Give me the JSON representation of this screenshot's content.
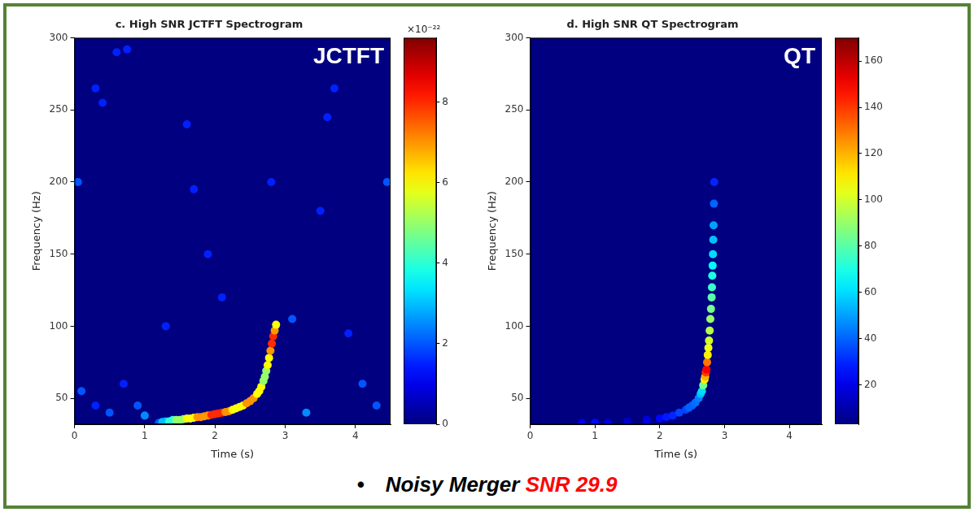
{
  "chart_data": [
    {
      "type": "heatmap",
      "title": "c. High SNR JCTFT Spectrogram",
      "annotation": "JCTFT",
      "x_label": "Time (s)",
      "y_label": "Frequency (Hz)",
      "xlim": [
        0,
        4.5
      ],
      "ylim": [
        32,
        300
      ],
      "xticks": [
        0,
        1,
        2,
        3,
        4
      ],
      "yticks": [
        50,
        100,
        150,
        200,
        250,
        300
      ],
      "grid": false,
      "colorbar": {
        "range": [
          0,
          9.6
        ],
        "ticks": [
          0,
          2,
          4,
          6,
          8
        ],
        "label": "×10⁻²²"
      },
      "cells": [
        {
          "x": 1.2,
          "y": 33,
          "value": 2
        },
        {
          "x": 1.25,
          "y": 33.5,
          "value": 3
        },
        {
          "x": 1.3,
          "y": 34,
          "value": 3
        },
        {
          "x": 1.35,
          "y": 34,
          "value": 4
        },
        {
          "x": 1.4,
          "y": 35,
          "value": 4
        },
        {
          "x": 1.45,
          "y": 35,
          "value": 5
        },
        {
          "x": 1.5,
          "y": 35,
          "value": 5
        },
        {
          "x": 1.55,
          "y": 35.5,
          "value": 5
        },
        {
          "x": 1.6,
          "y": 36,
          "value": 6
        },
        {
          "x": 1.65,
          "y": 36,
          "value": 6
        },
        {
          "x": 1.7,
          "y": 36.5,
          "value": 6
        },
        {
          "x": 1.75,
          "y": 37,
          "value": 7
        },
        {
          "x": 1.8,
          "y": 37,
          "value": 7
        },
        {
          "x": 1.85,
          "y": 37.5,
          "value": 7
        },
        {
          "x": 1.9,
          "y": 38,
          "value": 7
        },
        {
          "x": 1.95,
          "y": 38.5,
          "value": 8
        },
        {
          "x": 2.0,
          "y": 39,
          "value": 8
        },
        {
          "x": 2.05,
          "y": 39.5,
          "value": 8
        },
        {
          "x": 2.1,
          "y": 40,
          "value": 8
        },
        {
          "x": 2.15,
          "y": 40.5,
          "value": 7
        },
        {
          "x": 2.2,
          "y": 41,
          "value": 7
        },
        {
          "x": 2.25,
          "y": 42,
          "value": 6
        },
        {
          "x": 2.3,
          "y": 43,
          "value": 6
        },
        {
          "x": 2.35,
          "y": 44,
          "value": 6
        },
        {
          "x": 2.4,
          "y": 45,
          "value": 6
        },
        {
          "x": 2.45,
          "y": 46.5,
          "value": 7
        },
        {
          "x": 2.5,
          "y": 48,
          "value": 7
        },
        {
          "x": 2.55,
          "y": 50,
          "value": 7
        },
        {
          "x": 2.6,
          "y": 53,
          "value": 6
        },
        {
          "x": 2.63,
          "y": 55,
          "value": 6
        },
        {
          "x": 2.66,
          "y": 58,
          "value": 6
        },
        {
          "x": 2.69,
          "y": 62,
          "value": 5
        },
        {
          "x": 2.71,
          "y": 65,
          "value": 5
        },
        {
          "x": 2.73,
          "y": 69,
          "value": 5
        },
        {
          "x": 2.75,
          "y": 73,
          "value": 6
        },
        {
          "x": 2.77,
          "y": 78,
          "value": 6
        },
        {
          "x": 2.79,
          "y": 83,
          "value": 7
        },
        {
          "x": 2.81,
          "y": 88,
          "value": 8
        },
        {
          "x": 2.83,
          "y": 93,
          "value": 8
        },
        {
          "x": 2.85,
          "y": 97,
          "value": 7
        },
        {
          "x": 2.87,
          "y": 101,
          "value": 6
        },
        {
          "x": 0.1,
          "y": 55,
          "value": 2
        },
        {
          "x": 0.3,
          "y": 45,
          "value": 1.5
        },
        {
          "x": 0.5,
          "y": 40,
          "value": 2
        },
        {
          "x": 0.7,
          "y": 60,
          "value": 1.5
        },
        {
          "x": 0.9,
          "y": 45,
          "value": 2
        },
        {
          "x": 1.0,
          "y": 38,
          "value": 2.5
        },
        {
          "x": 0.3,
          "y": 265,
          "value": 1.5
        },
        {
          "x": 0.4,
          "y": 255,
          "value": 1.5
        },
        {
          "x": 0.6,
          "y": 290,
          "value": 1.5
        },
        {
          "x": 0.75,
          "y": 292,
          "value": 1.5
        },
        {
          "x": 1.3,
          "y": 100,
          "value": 1.5
        },
        {
          "x": 1.6,
          "y": 240,
          "value": 1.5
        },
        {
          "x": 1.7,
          "y": 195,
          "value": 1.5
        },
        {
          "x": 1.9,
          "y": 150,
          "value": 1.5
        },
        {
          "x": 2.1,
          "y": 120,
          "value": 1.5
        },
        {
          "x": 2.8,
          "y": 200,
          "value": 1.5
        },
        {
          "x": 3.1,
          "y": 105,
          "value": 2
        },
        {
          "x": 3.3,
          "y": 40,
          "value": 2.5
        },
        {
          "x": 3.5,
          "y": 180,
          "value": 1.5
        },
        {
          "x": 3.6,
          "y": 245,
          "value": 1.5
        },
        {
          "x": 3.7,
          "y": 265,
          "value": 1.5
        },
        {
          "x": 3.9,
          "y": 95,
          "value": 1.5
        },
        {
          "x": 4.1,
          "y": 60,
          "value": 2
        },
        {
          "x": 4.3,
          "y": 45,
          "value": 2
        },
        {
          "x": 4.45,
          "y": 200,
          "value": 2
        },
        {
          "x": 0.05,
          "y": 200,
          "value": 2
        }
      ]
    },
    {
      "type": "heatmap",
      "title": "d. High SNR QT Spectrogram",
      "annotation": "QT",
      "x_label": "Time (s)",
      "y_label": "Frequency (Hz)",
      "xlim": [
        0,
        4.5
      ],
      "ylim": [
        32,
        300
      ],
      "xticks": [
        0,
        1,
        2,
        3,
        4
      ],
      "yticks": [
        50,
        100,
        150,
        200,
        250,
        300
      ],
      "grid": false,
      "colorbar": {
        "range": [
          3,
          170
        ],
        "ticks": [
          20,
          40,
          60,
          80,
          100,
          120,
          140,
          160
        ]
      },
      "cells": [
        {
          "x": 0.8,
          "y": 33,
          "value": 20
        },
        {
          "x": 1.0,
          "y": 33,
          "value": 25
        },
        {
          "x": 1.2,
          "y": 33,
          "value": 18
        },
        {
          "x": 1.5,
          "y": 34,
          "value": 15
        },
        {
          "x": 1.8,
          "y": 35,
          "value": 20
        },
        {
          "x": 2.0,
          "y": 36,
          "value": 25
        },
        {
          "x": 2.1,
          "y": 37,
          "value": 28
        },
        {
          "x": 2.2,
          "y": 38,
          "value": 30
        },
        {
          "x": 2.3,
          "y": 40,
          "value": 35
        },
        {
          "x": 2.4,
          "y": 42,
          "value": 35
        },
        {
          "x": 2.45,
          "y": 43.5,
          "value": 40
        },
        {
          "x": 2.5,
          "y": 45,
          "value": 40
        },
        {
          "x": 2.55,
          "y": 47,
          "value": 42
        },
        {
          "x": 2.6,
          "y": 50,
          "value": 45
        },
        {
          "x": 2.63,
          "y": 53,
          "value": 55
        },
        {
          "x": 2.65,
          "y": 55,
          "value": 60
        },
        {
          "x": 2.67,
          "y": 59,
          "value": 85
        },
        {
          "x": 2.69,
          "y": 63,
          "value": 110
        },
        {
          "x": 2.7,
          "y": 65,
          "value": 120
        },
        {
          "x": 2.71,
          "y": 68,
          "value": 140
        },
        {
          "x": 2.72,
          "y": 70,
          "value": 150
        },
        {
          "x": 2.73,
          "y": 75,
          "value": 130
        },
        {
          "x": 2.74,
          "y": 80,
          "value": 110
        },
        {
          "x": 2.75,
          "y": 85,
          "value": 105
        },
        {
          "x": 2.76,
          "y": 90,
          "value": 100
        },
        {
          "x": 2.77,
          "y": 97,
          "value": 95
        },
        {
          "x": 2.78,
          "y": 105,
          "value": 90
        },
        {
          "x": 2.79,
          "y": 112,
          "value": 85
        },
        {
          "x": 2.8,
          "y": 120,
          "value": 80
        },
        {
          "x": 2.805,
          "y": 127,
          "value": 75
        },
        {
          "x": 2.81,
          "y": 135,
          "value": 70
        },
        {
          "x": 2.815,
          "y": 142,
          "value": 65
        },
        {
          "x": 2.82,
          "y": 150,
          "value": 60
        },
        {
          "x": 2.825,
          "y": 160,
          "value": 55
        },
        {
          "x": 2.83,
          "y": 170,
          "value": 50
        },
        {
          "x": 2.835,
          "y": 185,
          "value": 40
        },
        {
          "x": 2.84,
          "y": 200,
          "value": 30
        }
      ]
    }
  ],
  "caption": {
    "bullet": "•",
    "text": "Noisy Merger",
    "highlight": "SNR 29.9"
  }
}
